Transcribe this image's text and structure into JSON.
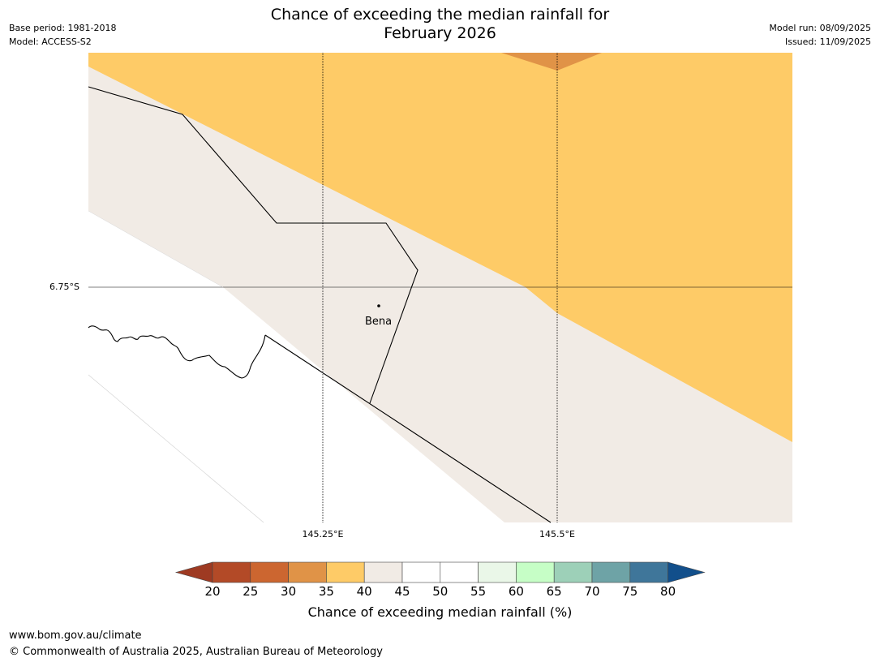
{
  "header": {
    "title_line1": "Chance of exceeding the median rainfall for",
    "title_line2": "February 2026",
    "base_period": "Base period: 1981-2018",
    "model": "Model: ACCESS-S2",
    "model_run": "Model run: 08/09/2025",
    "issued": "Issued: 11/09/2025"
  },
  "map": {
    "lat_label": "6.75°S",
    "lon_labels": [
      "145.25°E",
      "145.5°E"
    ],
    "place_name": "Bena"
  },
  "colorbar": {
    "label": "Chance of exceeding median rainfall (%)",
    "ticks": [
      "20",
      "25",
      "30",
      "35",
      "40",
      "45",
      "50",
      "55",
      "60",
      "65",
      "70",
      "75",
      "80"
    ],
    "colors": [
      "#9e3a22",
      "#b34a27",
      "#cc6630",
      "#e09347",
      "#fecb67",
      "#f1ebe5",
      "#ffffff",
      "#ffffff",
      "#eaf7e8",
      "#c6fec6",
      "#9dd0b8",
      "#6ea3a6",
      "#3f769a",
      "#124f8b"
    ]
  },
  "footer": {
    "url": "www.bom.gov.au/climate",
    "copyright": "© Commonwealth of Australia 2025, Australian Bureau of Meteorology"
  }
}
